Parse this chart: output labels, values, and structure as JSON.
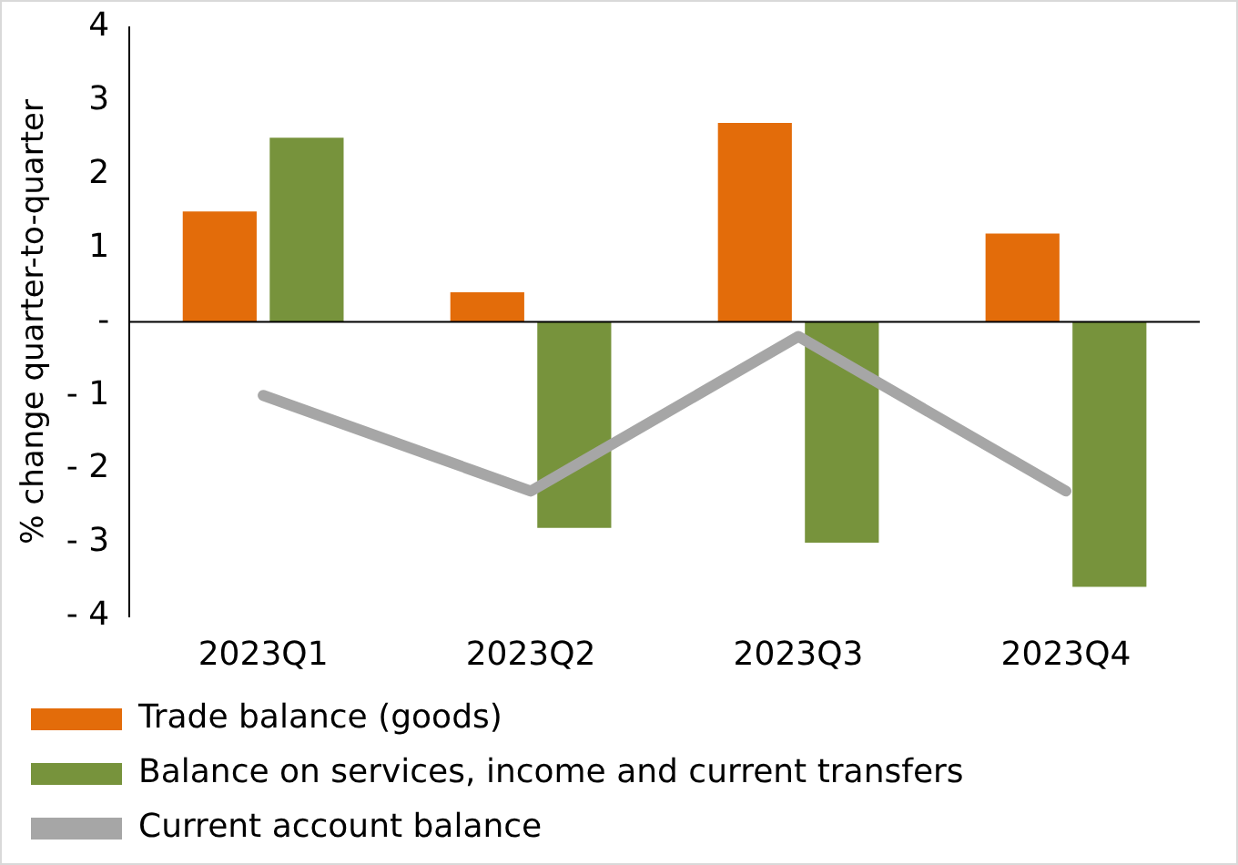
{
  "chart_data": {
    "type": "bar",
    "ylabel": "% change quarter-to-quarter",
    "categories": [
      "2023Q1",
      "2023Q2",
      "2023Q3",
      "2023Q4"
    ],
    "series": [
      {
        "name": "Trade balance (goods)",
        "color": "#e36c0a",
        "values": [
          1.5,
          0.4,
          2.7,
          1.2
        ]
      },
      {
        "name": "Balance on services, income and current transfers",
        "color": "#77933c",
        "values": [
          2.5,
          -2.8,
          -3.0,
          -3.6
        ]
      },
      {
        "name": "Current account balance",
        "type": "line",
        "color": "#a6a6a6",
        "values": [
          -1.0,
          -2.3,
          -0.2,
          -2.3
        ]
      }
    ],
    "ylim": [
      -4,
      4
    ],
    "yticks": [
      {
        "value": -4,
        "label": "- 4"
      },
      {
        "value": -3,
        "label": "- 3"
      },
      {
        "value": -2,
        "label": "- 2"
      },
      {
        "value": -1,
        "label": "- 1"
      },
      {
        "value": 0,
        "label": "-"
      },
      1,
      2,
      3,
      4
    ],
    "ref_lines": [
      {
        "axis": "y",
        "value": 0,
        "color": "#000000"
      }
    ],
    "grid": false,
    "legend": "bottom",
    "marker": "none"
  }
}
